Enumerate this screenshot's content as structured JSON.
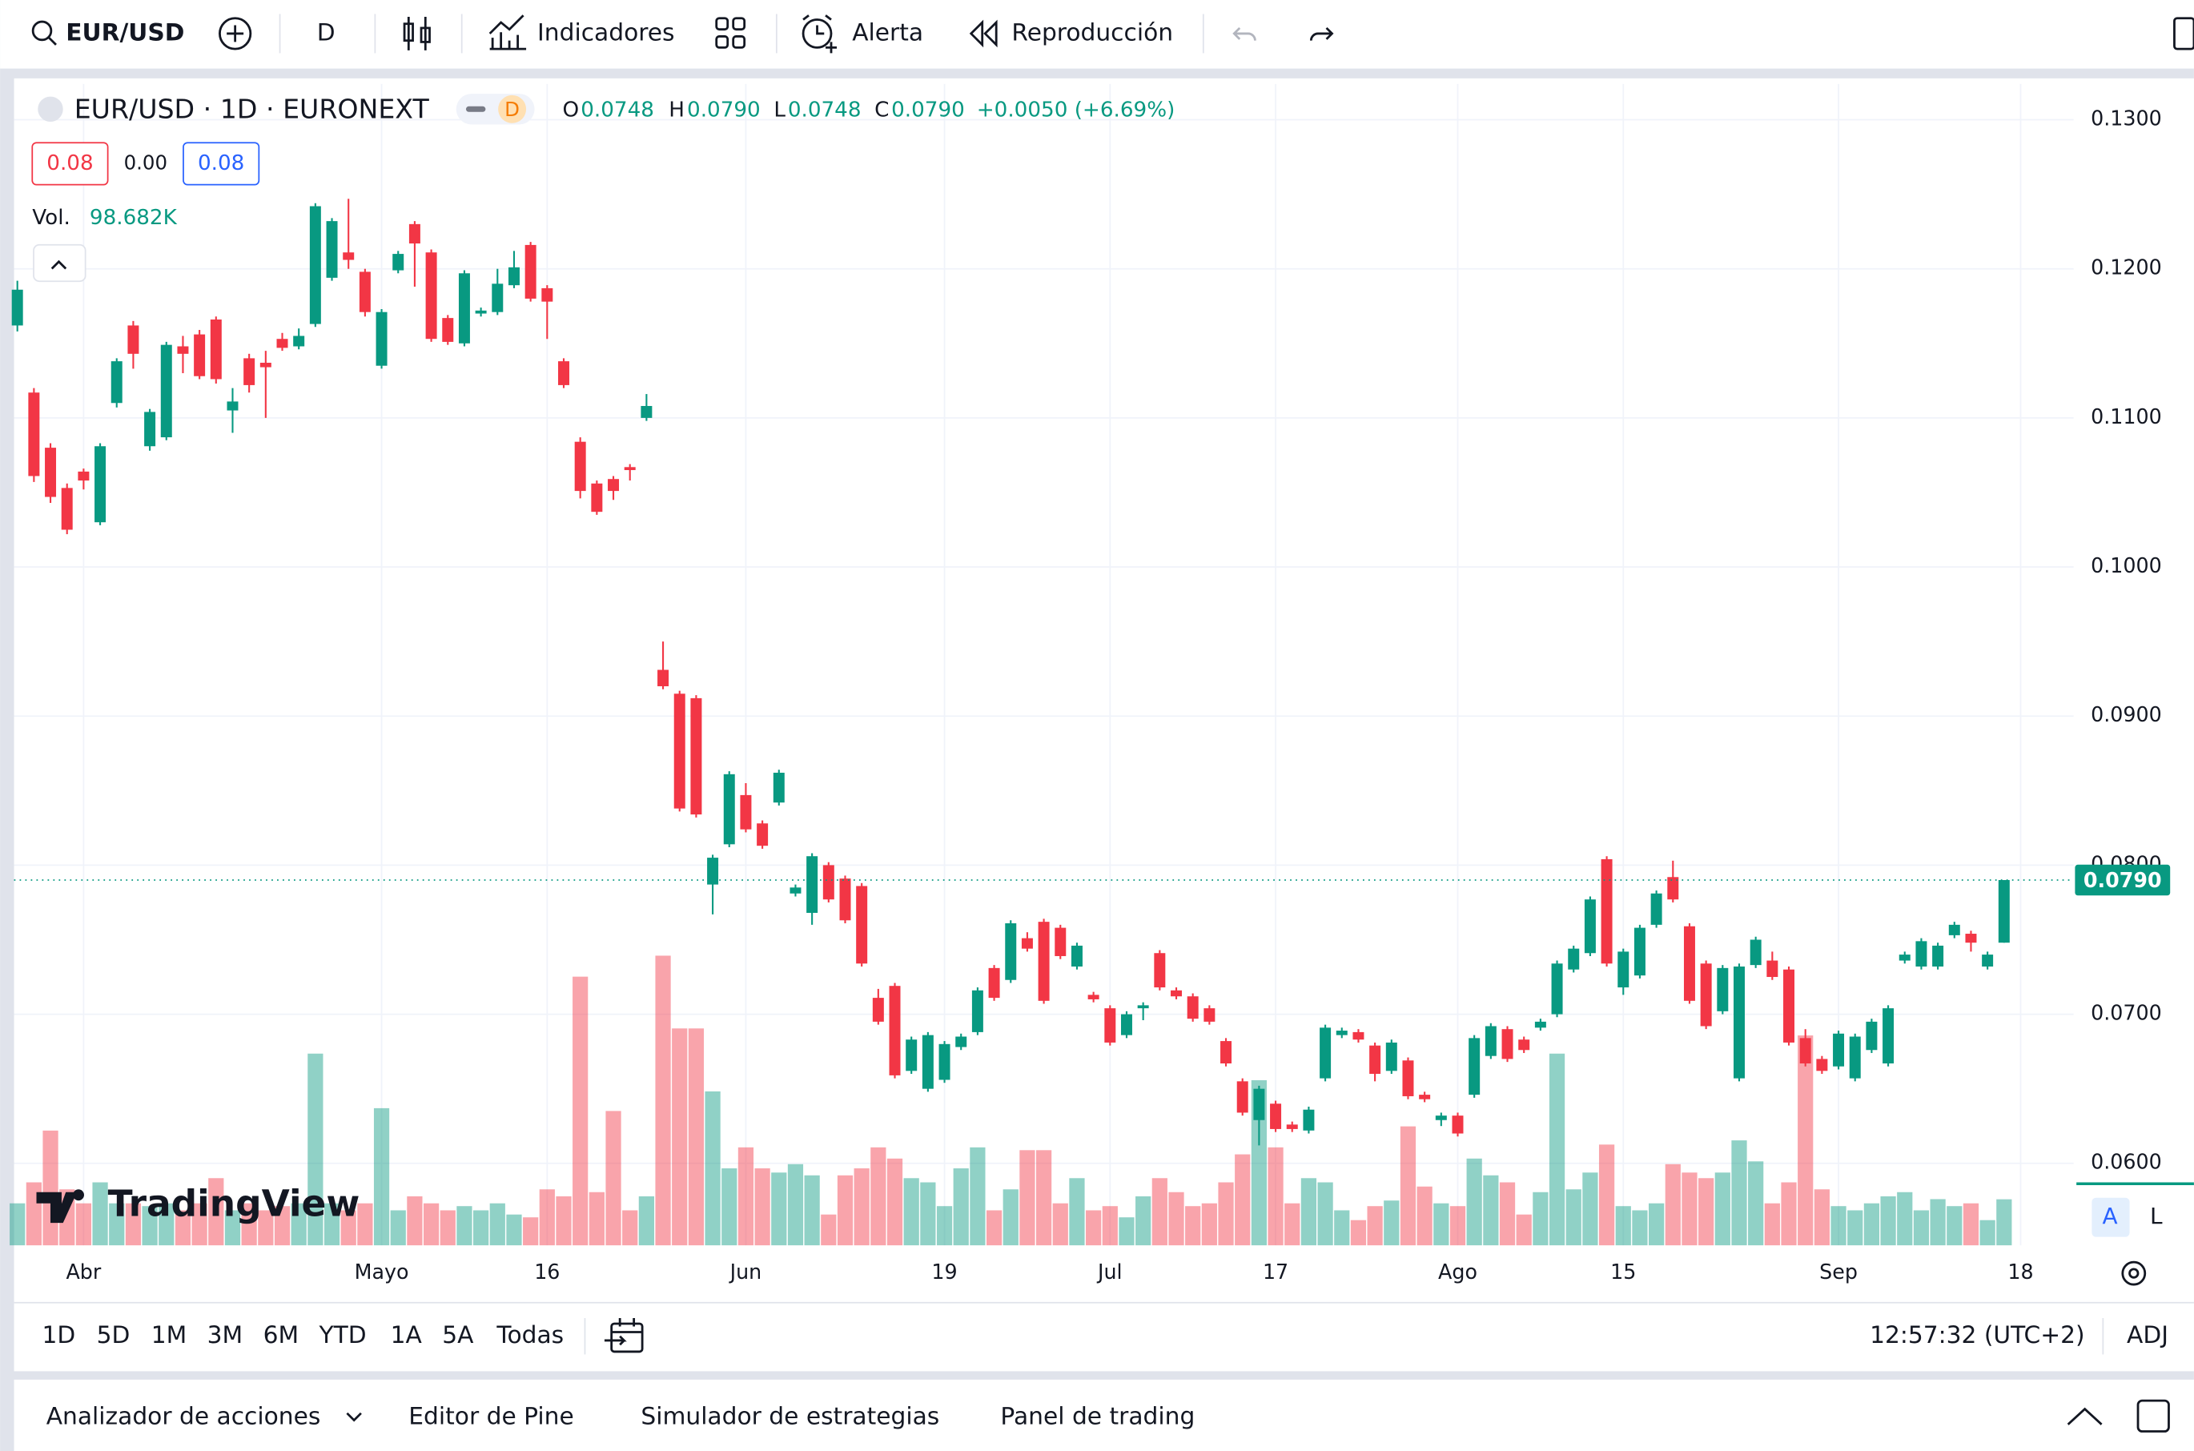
{
  "toolbar": {
    "symbol": "EUR/USD",
    "interval": "D",
    "indicators": "Indicadores",
    "alert": "Alerta",
    "replay": "Reproducción"
  },
  "chart_data": {
    "type": "candlestick",
    "title": "EUR/USD · 1D · EURONEXT",
    "interval_badge": "D",
    "legend": {
      "o_label": "O",
      "o": "0.0748",
      "h_label": "H",
      "h": "0.0790",
      "l_label": "L",
      "l": "0.0748",
      "c_label": "C",
      "c": "0.0790",
      "change": "+0.0050 (+6.69%)"
    },
    "spread": [
      "0.08",
      "0.00",
      "0.08"
    ],
    "volume_label": "Vol.",
    "volume_value_label": "98.682K",
    "up_color": "#089981",
    "down_color": "#f23645",
    "ohlc": [
      [
        0.1162,
        0.1192,
        0.1158,
        0.1186
      ],
      [
        0.1117,
        0.112,
        0.1057,
        0.1061
      ],
      [
        0.108,
        0.1083,
        0.1043,
        0.1047
      ],
      [
        0.1053,
        0.1056,
        0.1022,
        0.1025
      ],
      [
        0.1064,
        0.1066,
        0.1052,
        0.1058
      ],
      [
        0.103,
        0.1083,
        0.1028,
        0.1081
      ],
      [
        0.111,
        0.114,
        0.1107,
        0.1138
      ],
      [
        0.1162,
        0.1165,
        0.1133,
        0.1143
      ],
      [
        0.1081,
        0.1106,
        0.1078,
        0.1104
      ],
      [
        0.1087,
        0.1151,
        0.1085,
        0.1149
      ],
      [
        0.1148,
        0.1155,
        0.113,
        0.1143
      ],
      [
        0.1156,
        0.1159,
        0.1126,
        0.1128
      ],
      [
        0.1166,
        0.1168,
        0.1123,
        0.1126
      ],
      [
        0.1105,
        0.112,
        0.109,
        0.1111
      ],
      [
        0.114,
        0.1143,
        0.1117,
        0.1122
      ],
      [
        0.1137,
        0.1145,
        0.11,
        0.1134
      ],
      [
        0.1153,
        0.1157,
        0.1145,
        0.1147
      ],
      [
        0.1148,
        0.116,
        0.1146,
        0.1155
      ],
      [
        0.1163,
        0.1244,
        0.1161,
        0.1242
      ],
      [
        0.1194,
        0.1234,
        0.1192,
        0.1232
      ],
      [
        0.1211,
        0.1247,
        0.12,
        0.1206
      ],
      [
        0.1198,
        0.12,
        0.1168,
        0.1171
      ],
      [
        0.1135,
        0.1173,
        0.1133,
        0.1171
      ],
      [
        0.1199,
        0.1212,
        0.1197,
        0.121
      ],
      [
        0.123,
        0.1232,
        0.1188,
        0.1217
      ],
      [
        0.1211,
        0.1213,
        0.1151,
        0.1153
      ],
      [
        0.1167,
        0.1169,
        0.1149,
        0.1151
      ],
      [
        0.115,
        0.1199,
        0.1148,
        0.1197
      ],
      [
        0.117,
        0.1174,
        0.1168,
        0.1172
      ],
      [
        0.1171,
        0.12,
        0.1169,
        0.119
      ],
      [
        0.1189,
        0.1212,
        0.1187,
        0.1201
      ],
      [
        0.1216,
        0.1218,
        0.1178,
        0.118
      ],
      [
        0.1187,
        0.1189,
        0.1153,
        0.1178
      ],
      [
        0.1138,
        0.114,
        0.112,
        0.1122
      ],
      [
        0.1084,
        0.1087,
        0.1046,
        0.1051
      ],
      [
        0.1056,
        0.1058,
        0.1035,
        0.1037
      ],
      [
        0.1059,
        0.1061,
        0.1045,
        0.1051
      ],
      [
        0.1067,
        0.1069,
        0.1058,
        0.1065
      ],
      [
        0.11,
        0.1116,
        0.1098,
        0.1108
      ],
      [
        0.0931,
        0.095,
        0.0918,
        0.092
      ],
      [
        0.0915,
        0.0917,
        0.0836,
        0.0838
      ],
      [
        0.0912,
        0.0914,
        0.0832,
        0.0834
      ],
      [
        0.0787,
        0.0807,
        0.0767,
        0.0805
      ],
      [
        0.0814,
        0.0863,
        0.0812,
        0.0861
      ],
      [
        0.0847,
        0.0855,
        0.0822,
        0.0824
      ],
      [
        0.0828,
        0.083,
        0.0811,
        0.0813
      ],
      [
        0.0842,
        0.0864,
        0.084,
        0.0862
      ],
      [
        0.0781,
        0.0787,
        0.0779,
        0.0785
      ],
      [
        0.0768,
        0.0808,
        0.076,
        0.0806
      ],
      [
        0.08,
        0.0802,
        0.0775,
        0.0777
      ],
      [
        0.0791,
        0.0793,
        0.0761,
        0.0763
      ],
      [
        0.0786,
        0.0788,
        0.0732,
        0.0734
      ],
      [
        0.0711,
        0.0717,
        0.0693,
        0.0695
      ],
      [
        0.0719,
        0.0721,
        0.0657,
        0.0659
      ],
      [
        0.0662,
        0.0685,
        0.066,
        0.0683
      ],
      [
        0.065,
        0.0688,
        0.0648,
        0.0686
      ],
      [
        0.0656,
        0.0682,
        0.0654,
        0.068
      ],
      [
        0.0678,
        0.0687,
        0.0676,
        0.0685
      ],
      [
        0.0688,
        0.0718,
        0.0686,
        0.0716
      ],
      [
        0.0731,
        0.0733,
        0.0709,
        0.0711
      ],
      [
        0.0723,
        0.0763,
        0.0721,
        0.0761
      ],
      [
        0.0751,
        0.0755,
        0.0742,
        0.0744
      ],
      [
        0.0762,
        0.0764,
        0.0707,
        0.0709
      ],
      [
        0.0758,
        0.076,
        0.0737,
        0.0739
      ],
      [
        0.0732,
        0.0748,
        0.073,
        0.0746
      ],
      [
        0.0713,
        0.0715,
        0.0708,
        0.071
      ],
      [
        0.0704,
        0.0706,
        0.0679,
        0.0681
      ],
      [
        0.0686,
        0.0702,
        0.0684,
        0.07
      ],
      [
        0.0704,
        0.0708,
        0.0696,
        0.0706
      ],
      [
        0.0741,
        0.0743,
        0.0716,
        0.0718
      ],
      [
        0.0716,
        0.0718,
        0.071,
        0.0712
      ],
      [
        0.0712,
        0.0714,
        0.0695,
        0.0697
      ],
      [
        0.0704,
        0.0706,
        0.0693,
        0.0695
      ],
      [
        0.0682,
        0.0684,
        0.0665,
        0.0667
      ],
      [
        0.0655,
        0.0657,
        0.0632,
        0.0634
      ],
      [
        0.0629,
        0.0652,
        0.0612,
        0.065
      ],
      [
        0.064,
        0.0642,
        0.0621,
        0.0623
      ],
      [
        0.0626,
        0.0628,
        0.0621,
        0.0623
      ],
      [
        0.0622,
        0.0638,
        0.062,
        0.0636
      ],
      [
        0.0657,
        0.0693,
        0.0655,
        0.0691
      ],
      [
        0.0686,
        0.0691,
        0.0684,
        0.0689
      ],
      [
        0.0688,
        0.069,
        0.0681,
        0.0683
      ],
      [
        0.0679,
        0.0681,
        0.0655,
        0.066
      ],
      [
        0.0662,
        0.0683,
        0.066,
        0.0681
      ],
      [
        0.0669,
        0.0671,
        0.0643,
        0.0645
      ],
      [
        0.0646,
        0.0648,
        0.0641,
        0.0643
      ],
      [
        0.0629,
        0.0634,
        0.0625,
        0.0632
      ],
      [
        0.0632,
        0.0634,
        0.0618,
        0.062
      ],
      [
        0.0646,
        0.0686,
        0.0644,
        0.0684
      ],
      [
        0.0672,
        0.0694,
        0.067,
        0.0692
      ],
      [
        0.069,
        0.0692,
        0.0668,
        0.067
      ],
      [
        0.0683,
        0.0685,
        0.0674,
        0.0676
      ],
      [
        0.0691,
        0.0697,
        0.0689,
        0.0695
      ],
      [
        0.07,
        0.0736,
        0.0698,
        0.0734
      ],
      [
        0.073,
        0.0746,
        0.0728,
        0.0744
      ],
      [
        0.0741,
        0.0779,
        0.0739,
        0.0777
      ],
      [
        0.0804,
        0.0806,
        0.0732,
        0.0734
      ],
      [
        0.0718,
        0.0744,
        0.0713,
        0.0742
      ],
      [
        0.0726,
        0.076,
        0.0724,
        0.0758
      ],
      [
        0.076,
        0.0783,
        0.0758,
        0.0781
      ],
      [
        0.0792,
        0.0803,
        0.0775,
        0.0777
      ],
      [
        0.0759,
        0.0761,
        0.0707,
        0.0709
      ],
      [
        0.0734,
        0.0736,
        0.069,
        0.0692
      ],
      [
        0.0702,
        0.0733,
        0.07,
        0.0731
      ],
      [
        0.0657,
        0.0734,
        0.0655,
        0.0732
      ],
      [
        0.0733,
        0.0752,
        0.0731,
        0.075
      ],
      [
        0.0736,
        0.0742,
        0.0723,
        0.0725
      ],
      [
        0.073,
        0.0732,
        0.0679,
        0.0681
      ],
      [
        0.0684,
        0.069,
        0.0665,
        0.0667
      ],
      [
        0.067,
        0.0672,
        0.066,
        0.0662
      ],
      [
        0.0665,
        0.0689,
        0.0663,
        0.0687
      ],
      [
        0.0657,
        0.0687,
        0.0655,
        0.0685
      ],
      [
        0.0676,
        0.0697,
        0.0674,
        0.0695
      ],
      [
        0.0667,
        0.0706,
        0.0665,
        0.0704
      ],
      [
        0.0736,
        0.0742,
        0.0734,
        0.074
      ],
      [
        0.0732,
        0.0751,
        0.073,
        0.0749
      ],
      [
        0.0732,
        0.0748,
        0.073,
        0.0746
      ],
      [
        0.0753,
        0.0762,
        0.0751,
        0.076
      ],
      [
        0.0754,
        0.0756,
        0.0742,
        0.0748
      ],
      [
        0.0732,
        0.0742,
        0.073,
        0.074
      ],
      [
        0.0748,
        0.079,
        0.0748,
        0.079
      ]
    ],
    "volume": [
      90000,
      135000,
      246000,
      120000,
      90000,
      135000,
      90000,
      90000,
      84000,
      90000,
      75000,
      90000,
      144000,
      75000,
      90000,
      75000,
      84000,
      90000,
      411000,
      90000,
      75000,
      90000,
      294000,
      75000,
      105000,
      90000,
      75000,
      84000,
      75000,
      90000,
      66000,
      60000,
      120000,
      105000,
      576000,
      114000,
      288000,
      75000,
      105000,
      621000,
      465000,
      465000,
      330000,
      165000,
      210000,
      165000,
      156000,
      174000,
      150000,
      66000,
      150000,
      165000,
      210000,
      186000,
      144000,
      135000,
      84000,
      165000,
      210000,
      75000,
      120000,
      204000,
      204000,
      90000,
      144000,
      75000,
      84000,
      60000,
      105000,
      144000,
      114000,
      84000,
      90000,
      135000,
      195000,
      354000,
      210000,
      90000,
      144000,
      135000,
      75000,
      54000,
      84000,
      96000,
      255000,
      126000,
      90000,
      84000,
      186000,
      150000,
      135000,
      66000,
      114000,
      411000,
      120000,
      156000,
      216000,
      84000,
      75000,
      90000,
      174000,
      156000,
      144000,
      156000,
      225000,
      180000,
      90000,
      135000,
      450000,
      120000,
      84000,
      75000,
      90000,
      105000,
      114000,
      75000,
      99000,
      84000,
      90000,
      54000,
      98682
    ],
    "last_price_label": "0.0790",
    "ylim": [
      0.0545,
      0.1324
    ],
    "yticks": [
      {
        "value": 0.06,
        "label": "0.0600"
      },
      {
        "value": 0.07,
        "label": "0.0700"
      },
      {
        "value": 0.08,
        "label": "0.0800"
      },
      {
        "value": 0.09,
        "label": "0.0900"
      },
      {
        "value": 0.1,
        "label": "0.1000"
      },
      {
        "value": 0.11,
        "label": "0.1100"
      },
      {
        "value": 0.12,
        "label": "0.1200"
      },
      {
        "value": 0.13,
        "label": "0.1300"
      }
    ],
    "xlim": [
      -0.2,
      124.2
    ],
    "xticks": [
      {
        "value": 4,
        "label": "Abr"
      },
      {
        "value": 22,
        "label": "Mayo"
      },
      {
        "value": 32,
        "label": "16"
      },
      {
        "value": 44,
        "label": "Jun"
      },
      {
        "value": 56,
        "label": "19"
      },
      {
        "value": 66,
        "label": "Jul"
      },
      {
        "value": 76,
        "label": "17"
      },
      {
        "value": 87,
        "label": "Ago"
      },
      {
        "value": 97,
        "label": "15"
      },
      {
        "value": 110,
        "label": "Sep"
      },
      {
        "value": 121,
        "label": "18"
      }
    ],
    "grid": true,
    "watermark": "TradingView"
  },
  "range_bar": {
    "ranges": [
      "1D",
      "5D",
      "1M",
      "3M",
      "6M",
      "YTD",
      "1A",
      "5A",
      "Todas"
    ],
    "time": "12:57:32 (UTC+2)",
    "adj": "ADJ",
    "scale_modes": [
      "A",
      "L"
    ]
  },
  "bottom_panel": {
    "tabs": [
      "Analizador de acciones",
      "Editor de Pine",
      "Simulador de estrategias",
      "Panel de trading"
    ]
  }
}
